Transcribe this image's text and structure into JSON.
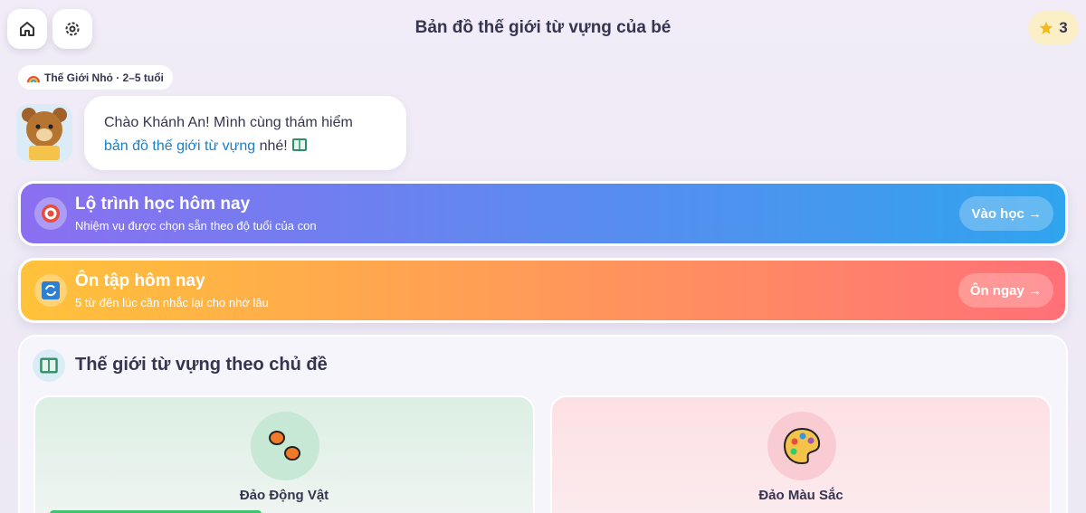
{
  "header": {
    "title": "Bản đồ thế giới từ vựng của bé",
    "stars": 3
  },
  "badge": "Thế Giới Nhỏ · 2–5 tuổi",
  "greeting": {
    "line1": "Chào Khánh An! Mình cùng thám hiểm",
    "link": "bản đồ thế giới từ vựng",
    "tail": "nhé!"
  },
  "cards": [
    {
      "title": "Lộ trình học hôm nay",
      "subtitle": "Nhiệm vụ được chọn sẵn theo độ tuổi của con",
      "button": "Vào học →"
    },
    {
      "title": "Ôn tập hôm nay",
      "subtitle": "5 từ đến lúc cần nhắc lại cho nhớ lâu",
      "button": "Ôn ngay →"
    }
  ],
  "section": {
    "title": "Thế giới từ vựng theo chủ đề",
    "islands": [
      "Đảo Động Vật",
      "Đảo Màu Sắc"
    ]
  }
}
